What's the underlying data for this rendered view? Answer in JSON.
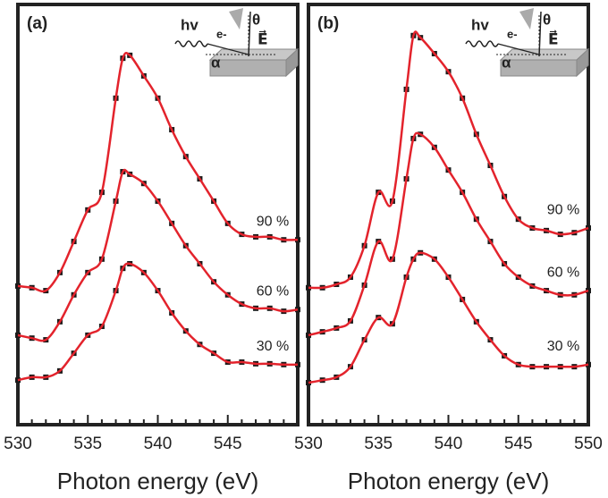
{
  "chart_data": [
    {
      "type": "line",
      "panel_label": "(a)",
      "x_label": "Photon energy (eV)",
      "x": [
        530,
        531,
        532,
        533,
        534,
        535,
        536,
        537,
        537.5,
        538,
        539,
        540,
        541,
        542,
        543,
        544,
        545,
        546,
        547,
        548,
        549,
        550
      ],
      "xlim": [
        530,
        550
      ],
      "ylim": [
        0,
        100
      ],
      "xticks": [
        530,
        535,
        540,
        545
      ],
      "xticks_minor": [
        531,
        532,
        533,
        534,
        536,
        537,
        538,
        539,
        541,
        542,
        543,
        544,
        546,
        547,
        548,
        549
      ],
      "line_color": "#e3232c",
      "marker_color": "#1a1a1a",
      "inset": {
        "photon": "hv",
        "electron": "e-",
        "theta": "θ",
        "field": "E⃗",
        "alpha": "α"
      },
      "series": [
        {
          "name": "90 %",
          "values": [
            33.0,
            32.6,
            31.9,
            36.2,
            43.6,
            51.1,
            55.3,
            77.7,
            87.2,
            87.9,
            83.0,
            77.7,
            70.2,
            63.8,
            58.5,
            53.2,
            47.9,
            45.3,
            44.7,
            44.7,
            44.0,
            44.0
          ]
        },
        {
          "name": "60 %",
          "values": [
            21.3,
            20.6,
            20.2,
            24.5,
            30.9,
            36.2,
            39.4,
            53.2,
            60.2,
            59.6,
            57.4,
            53.2,
            47.9,
            42.6,
            38.3,
            34.0,
            30.9,
            28.7,
            27.7,
            27.7,
            27.0,
            27.4
          ]
        },
        {
          "name": "30 %",
          "values": [
            10.6,
            11.3,
            11.3,
            12.8,
            17.0,
            21.3,
            23.4,
            31.9,
            37.2,
            38.3,
            36.2,
            31.9,
            26.6,
            22.3,
            19.1,
            17.0,
            14.9,
            14.9,
            14.5,
            14.5,
            14.3,
            14.3
          ]
        }
      ]
    },
    {
      "type": "line",
      "panel_label": "(b)",
      "x_label": "Photon energy (eV)",
      "x": [
        530,
        531,
        532,
        533,
        534,
        535,
        536,
        537,
        537.5,
        538,
        539,
        540,
        541,
        542,
        543,
        544,
        545,
        546,
        547,
        548,
        549,
        550
      ],
      "xlim": [
        530,
        550
      ],
      "ylim": [
        0,
        100
      ],
      "xticks": [
        530,
        535,
        540,
        545,
        550
      ],
      "xticks_minor": [
        531,
        532,
        533,
        534,
        536,
        537,
        538,
        539,
        541,
        542,
        543,
        544,
        546,
        547,
        548,
        549
      ],
      "line_color": "#e3232c",
      "marker_color": "#1a1a1a",
      "inset": {
        "photon": "hv",
        "electron": "e-",
        "theta": "θ",
        "field": "E⃗",
        "alpha": "α"
      },
      "series": [
        {
          "name": "90 %",
          "values": [
            32.6,
            32.6,
            33.4,
            35.1,
            42.6,
            55.3,
            53.2,
            79.8,
            92.6,
            92.1,
            88.3,
            84.0,
            77.7,
            69.1,
            61.7,
            54.3,
            48.9,
            46.8,
            46.2,
            45.3,
            45.7,
            46.8
          ]
        },
        {
          "name": "60 %",
          "values": [
            21.3,
            22.1,
            23.0,
            24.7,
            33.2,
            43.6,
            39.4,
            58.5,
            68.1,
            69.1,
            66.0,
            60.6,
            55.3,
            48.9,
            43.6,
            38.3,
            35.1,
            33.0,
            31.9,
            30.9,
            30.9,
            31.9
          ]
        },
        {
          "name": "30 %",
          "values": [
            10.0,
            10.6,
            11.3,
            13.8,
            20.2,
            25.5,
            24.0,
            35.1,
            39.4,
            40.9,
            39.4,
            35.1,
            29.8,
            24.5,
            20.2,
            16.4,
            14.3,
            13.8,
            13.8,
            13.8,
            13.8,
            14.3
          ]
        }
      ]
    }
  ]
}
